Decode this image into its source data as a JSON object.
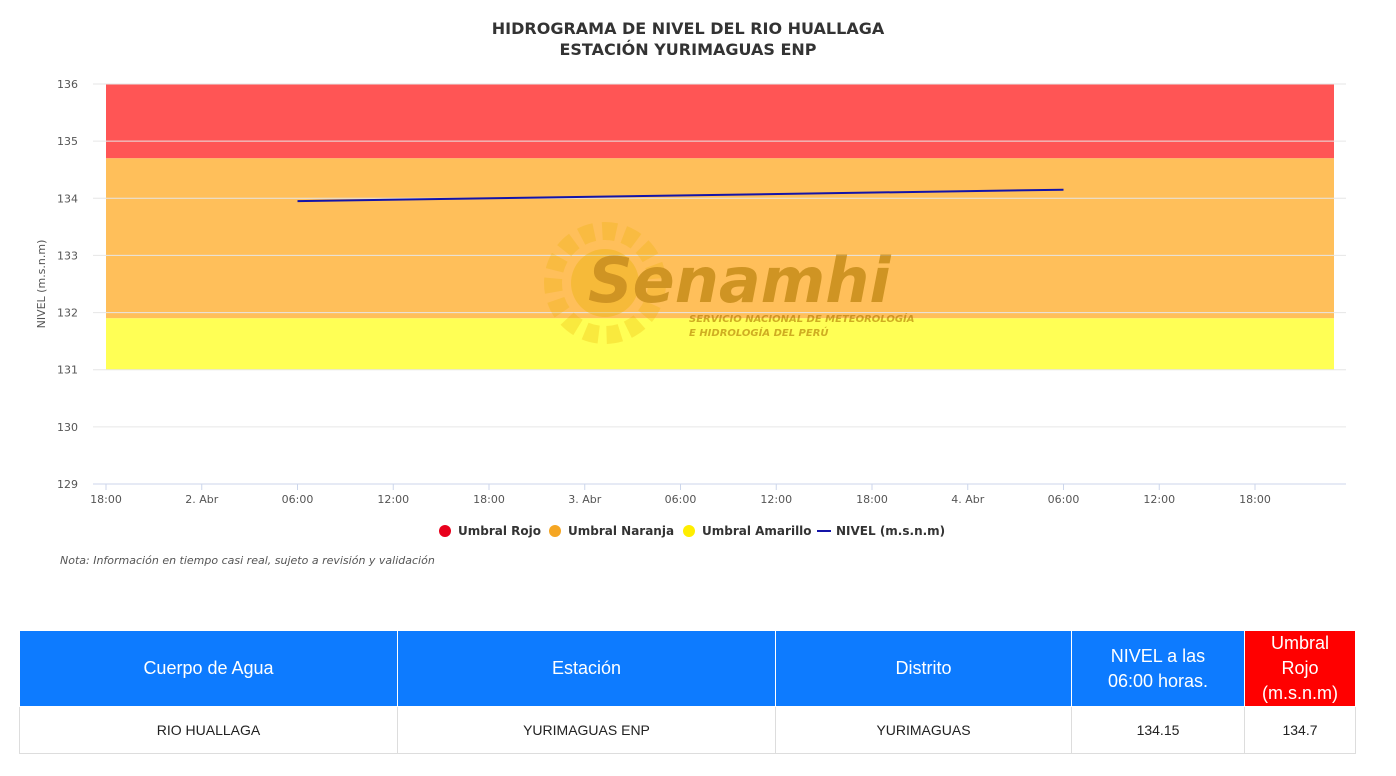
{
  "chart_data": {
    "type": "line",
    "title": "HIDROGRAMA DE NIVEL DEL RIO HUALLAGA",
    "subtitle": "ESTACIÓN YURIMAGUAS ENP",
    "ylabel": "NIVEL (m.s.n.m)",
    "xlabel": "",
    "ylim": [
      129,
      136
    ],
    "y_ticks": [
      "129",
      "130",
      "131",
      "132",
      "133",
      "134",
      "135",
      "136"
    ],
    "x_range_hours": [
      0,
      72
    ],
    "x_ticks": [
      {
        "h": 0,
        "label": "18:00"
      },
      {
        "h": 6,
        "label": "2. Abr"
      },
      {
        "h": 12,
        "label": "06:00"
      },
      {
        "h": 18,
        "label": "12:00"
      },
      {
        "h": 24,
        "label": "18:00"
      },
      {
        "h": 30,
        "label": "3. Abr"
      },
      {
        "h": 36,
        "label": "06:00"
      },
      {
        "h": 42,
        "label": "12:00"
      },
      {
        "h": 48,
        "label": "18:00"
      },
      {
        "h": 54,
        "label": "4. Abr"
      },
      {
        "h": 60,
        "label": "06:00"
      },
      {
        "h": 66,
        "label": "12:00"
      },
      {
        "h": 72,
        "label": "18:00"
      }
    ],
    "bands": [
      {
        "name": "Umbral Rojo",
        "from": 134.7,
        "to": 136,
        "color": "#ff5555"
      },
      {
        "name": "Umbral Naranja",
        "from": 131.9,
        "to": 134.7,
        "color": "#ffbf5a"
      },
      {
        "name": "Umbral Amarillo",
        "from": 131,
        "to": 131.9,
        "color": "#ffff55"
      }
    ],
    "series": [
      {
        "name": "NIVEL (m.s.n.m)",
        "color": "#1414a8",
        "points": [
          {
            "h": 12,
            "y": 133.95
          },
          {
            "h": 60,
            "y": 134.15
          }
        ]
      }
    ],
    "legend": [
      {
        "label": "Umbral Rojo",
        "color": "#e8001c",
        "kind": "dot"
      },
      {
        "label": "Umbral Naranja",
        "color": "#f5a623",
        "kind": "dot"
      },
      {
        "label": "Umbral Amarillo",
        "color": "#ffee00",
        "kind": "dot"
      },
      {
        "label": "NIVEL (m.s.n.m)",
        "color": "#1414a8",
        "kind": "line"
      }
    ],
    "legend_position": "bottom-center",
    "grid": true
  },
  "watermark": {
    "brand": "Senamhi",
    "tagline_1": "SERVICIO NACIONAL DE METEOROLOGÍA",
    "tagline_2": "E HIDROLOGÍA DEL PERÚ"
  },
  "note": "Nota: Información en tiempo casi real, sujeto a revisión y validación",
  "table": {
    "headers": {
      "cuerpo": "Cuerpo de Agua",
      "estacion": "Estación",
      "distrito": "Distrito",
      "nivel_1": "NIVEL a las",
      "nivel_2": "06:00 horas.",
      "umbral_1": "Umbral Rojo",
      "umbral_2": "(m.s.n.m)"
    },
    "row": {
      "cuerpo": "RIO HUALLAGA",
      "estacion": "YURIMAGUAS ENP",
      "distrito": "YURIMAGUAS",
      "nivel": "134.15",
      "umbral": "134.7"
    },
    "colors": {
      "header": "#0d7bff",
      "header_red": "#ff0000"
    }
  }
}
